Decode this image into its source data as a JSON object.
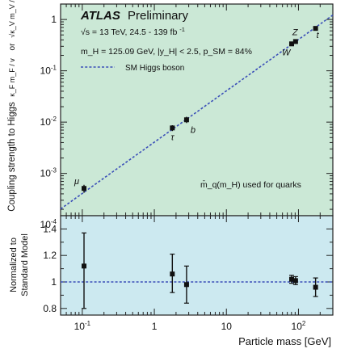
{
  "chart_data": [
    {
      "type": "scatter",
      "panel": "top",
      "background": "#cbe8d6",
      "ylabel": "Coupling strength to Higgs",
      "ylabel_extra": "or",
      "kappa_f_label": "κ_F m_F / v",
      "kappa_v_label": "√κ_V m_V / v",
      "y_scale": "log",
      "ylim": [
        0.00015,
        2
      ],
      "xlim": [
        0.05,
        300
      ],
      "y_ticks": [
        {
          "v": 0.0001,
          "base": "10",
          "exp": "-4"
        },
        {
          "v": 0.001,
          "base": "10",
          "exp": "-3"
        },
        {
          "v": 0.01,
          "base": "10",
          "exp": "-2"
        },
        {
          "v": 0.1,
          "base": "10",
          "exp": "-1"
        },
        {
          "v": 1,
          "base": "1",
          "exp": ""
        }
      ],
      "header": {
        "atlas": "ATLAS",
        "status": "Preliminary",
        "energy_line": "√s = 13 TeV, 24.5 - 139 fb",
        "energy_sup": "-1",
        "params_line": "m_H = 125.09 GeV, |y_H| < 2.5, p_SM = 84%"
      },
      "legend": {
        "entry": "SM Higgs boson",
        "placement": "top-left"
      },
      "annotation": "m̄_q(m_H) used for quarks",
      "sm_line": {
        "label": "SM Higgs boson",
        "style": "dashed",
        "color": "#3b4fb8",
        "slope": 1,
        "intercept": 1
      },
      "points": [
        {
          "label": "μ",
          "x": 0.1057,
          "y": 0.00051,
          "err_low": 9e-05,
          "err_high": 9e-05
        },
        {
          "label": "τ",
          "x": 1.777,
          "y": 0.0077,
          "err_low": 0.001,
          "err_high": 0.001
        },
        {
          "label": "b",
          "x": 2.8,
          "y": 0.0111,
          "err_low": 0.0015,
          "err_high": 0.0016
        },
        {
          "label": "W",
          "x": 80.4,
          "y": 0.335,
          "err_low": 0.02,
          "err_high": 0.02
        },
        {
          "label": "Z",
          "x": 91.2,
          "y": 0.372,
          "err_low": 0.02,
          "err_high": 0.02
        },
        {
          "label": "t",
          "x": 172.8,
          "y": 0.67,
          "err_low": 0.06,
          "err_high": 0.06
        }
      ]
    },
    {
      "type": "scatter",
      "panel": "bottom",
      "background": "#cce9f0",
      "ylabel": "Normalized to Standard Model",
      "ylabel_line1": "Normalized to",
      "ylabel_line2": "Standard Model",
      "xlabel": "Particle mass [GeV]",
      "x_scale": "log",
      "xlim": [
        0.05,
        300
      ],
      "ylim": [
        0.75,
        1.5
      ],
      "y_ticks": [
        0.8,
        1,
        1.2,
        1.4
      ],
      "y_tick_labels": [
        "0.8",
        "1",
        "1.2",
        "1.4"
      ],
      "x_ticks": [
        {
          "v": 0.1,
          "base": "10",
          "exp": "-1"
        },
        {
          "v": 1,
          "base": "1",
          "exp": ""
        },
        {
          "v": 10,
          "base": "10",
          "exp": ""
        },
        {
          "v": 100,
          "base": "10",
          "exp": "2"
        }
      ],
      "reference_line": {
        "y": 1,
        "style": "dashed",
        "color": "#3b4fb8"
      },
      "points": [
        {
          "label": "μ",
          "x": 0.1057,
          "y": 1.12,
          "err_low": 0.32,
          "err_high": 0.25
        },
        {
          "label": "τ",
          "x": 1.777,
          "y": 1.06,
          "err_low": 0.14,
          "err_high": 0.15
        },
        {
          "label": "b",
          "x": 2.8,
          "y": 0.98,
          "err_low": 0.14,
          "err_high": 0.14
        },
        {
          "label": "W",
          "x": 80.4,
          "y": 1.02,
          "err_low": 0.03,
          "err_high": 0.03
        },
        {
          "label": "Z",
          "x": 91.2,
          "y": 1.01,
          "err_low": 0.03,
          "err_high": 0.03
        },
        {
          "label": "t",
          "x": 172.8,
          "y": 0.96,
          "err_low": 0.07,
          "err_high": 0.07
        }
      ]
    }
  ]
}
